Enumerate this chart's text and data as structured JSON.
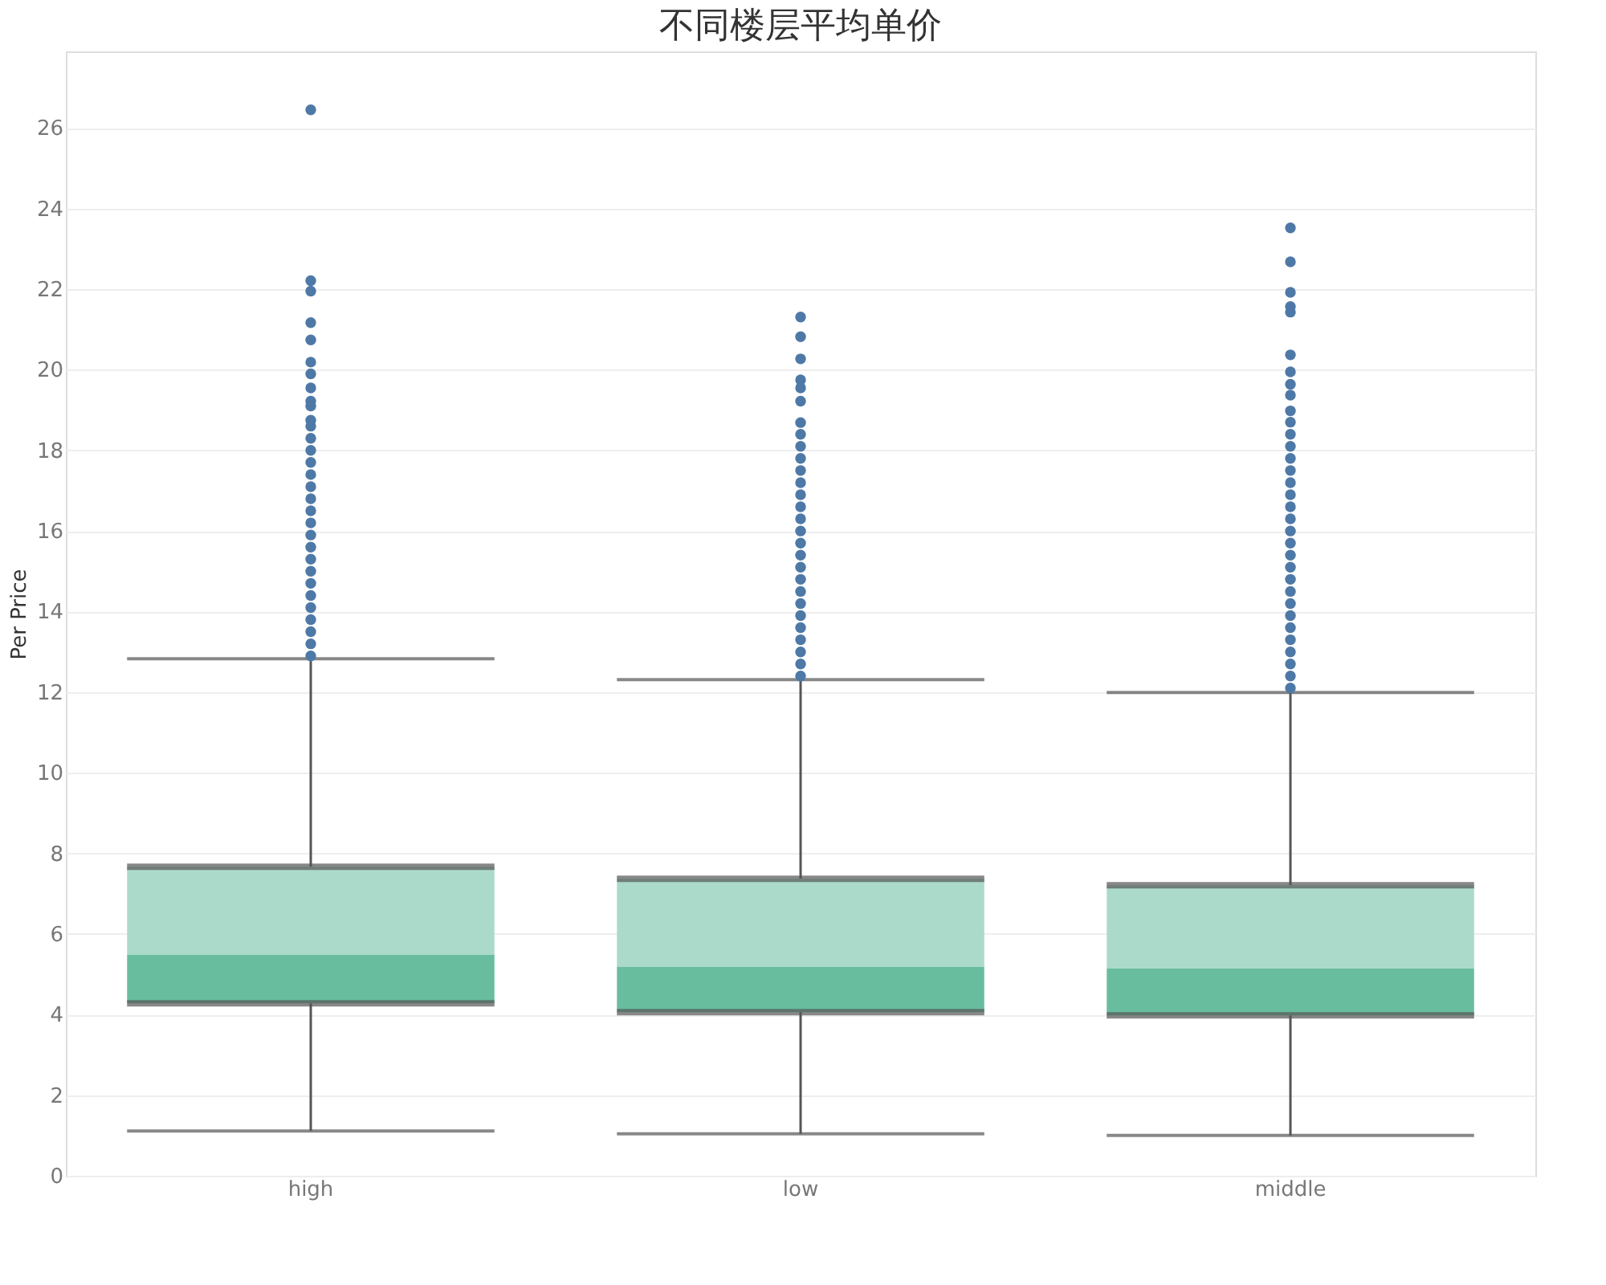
{
  "chart_data": {
    "type": "box",
    "title": "不同楼层平均单价",
    "ylabel": "Per Price",
    "categories": [
      "high",
      "low",
      "middle"
    ],
    "ylim": [
      0,
      27.9
    ],
    "yticks": [
      0,
      2,
      4,
      6,
      8,
      10,
      12,
      14,
      16,
      18,
      20,
      22,
      24,
      26
    ],
    "grid": "y",
    "marker": "circle",
    "series": [
      {
        "color": "#4e79a7",
        "colors": [
          "#60b99a",
          "#60b99a",
          "#60b99a"
        ],
        "boxes": [
          {
            "low": 1.11,
            "q1": 4.28,
            "median": 5.48,
            "q3": 7.67,
            "high": 12.83,
            "outliers": [
              26.45,
              22.21,
              21.95,
              21.17,
              20.74,
              20.19,
              19.9,
              19.55,
              19.22,
              19.1,
              18.75,
              18.6,
              18.3,
              18.0,
              17.7,
              17.4,
              17.1,
              16.8,
              16.5,
              16.2,
              15.9,
              15.6,
              15.3,
              15.0,
              14.7,
              14.4,
              14.1,
              13.8,
              13.5,
              13.2,
              12.9
            ]
          },
          {
            "low": 1.04,
            "q1": 4.06,
            "median": 5.18,
            "q3": 7.37,
            "high": 12.31,
            "outliers": [
              21.31,
              20.82,
              20.27,
              19.75,
              19.55,
              19.22,
              18.69,
              18.4,
              18.1,
              17.8,
              17.5,
              17.2,
              16.9,
              16.6,
              16.3,
              16.0,
              15.7,
              15.4,
              15.1,
              14.8,
              14.5,
              14.2,
              13.9,
              13.6,
              13.3,
              13.0,
              12.7,
              12.4
            ]
          },
          {
            "low": 1.0,
            "q1": 3.98,
            "median": 5.14,
            "q3": 7.21,
            "high": 11.99,
            "outliers": [
              23.52,
              22.68,
              21.92,
              21.57,
              21.43,
              20.37,
              19.95,
              19.64,
              19.37,
              18.98,
              18.7,
              18.4,
              18.1,
              17.8,
              17.5,
              17.2,
              16.9,
              16.6,
              16.3,
              16.0,
              15.7,
              15.4,
              15.1,
              14.8,
              14.5,
              14.2,
              13.9,
              13.6,
              13.3,
              13.0,
              12.7,
              12.4,
              12.1
            ]
          }
        ]
      }
    ]
  }
}
